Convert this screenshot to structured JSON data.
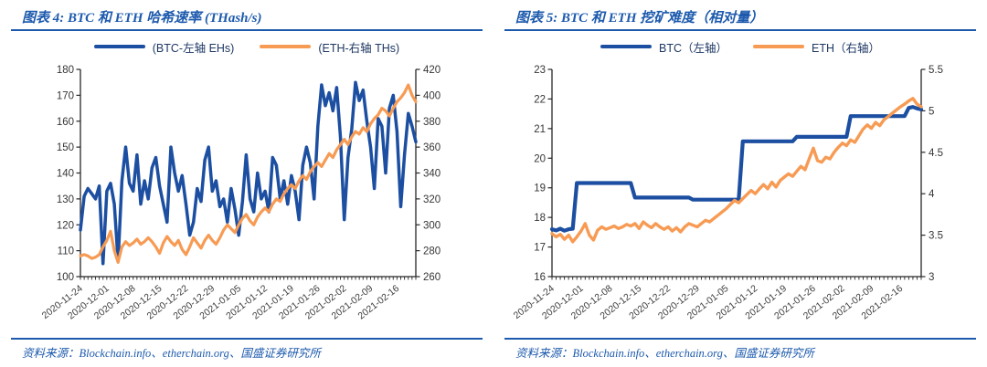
{
  "page": {
    "background": "#ffffff",
    "accent_color": "#1D5AAD"
  },
  "panels": [
    {
      "source": "资料来源：Blockchain.info、etherchain.org、国盛证券研究所"
    },
    {
      "source": "资料来源：Blockchain.info、etherchain.org、国盛证券研究所"
    }
  ],
  "chart_data": [
    {
      "type": "line",
      "title": "图表 4: BTC 和 ETH 哈希速率 (THash/s)",
      "legend_position": "top",
      "grid": false,
      "x_tick_labels": [
        "2020-11-24",
        "2020-12-01",
        "2020-12-08",
        "2020-12-15",
        "2020-12-22",
        "2020-12-29",
        "2021-01-05",
        "2021-01-12",
        "2021-01-19",
        "2021-01-26",
        "2021-02-02",
        "2021-02-09",
        "2021-02-16"
      ],
      "x_frequency": "daily",
      "left_axis": {
        "min": 100,
        "max": 180,
        "ticks": [
          100,
          110,
          120,
          130,
          140,
          150,
          160,
          170,
          180
        ]
      },
      "right_axis": {
        "min": 260,
        "max": 420,
        "ticks": [
          260,
          280,
          300,
          320,
          340,
          360,
          380,
          400,
          420
        ]
      },
      "series": [
        {
          "name": "(BTC-左轴 EHs)",
          "axis": "left",
          "color": "#1C4FA1",
          "values": [
            118,
            131,
            134,
            132,
            130,
            135,
            105,
            133,
            136,
            128,
            106,
            137,
            150,
            136,
            133,
            147,
            128,
            137,
            130,
            142,
            146,
            135,
            128,
            121,
            150,
            140,
            133,
            139,
            128,
            116,
            121,
            134,
            129,
            145,
            150,
            133,
            137,
            127,
            130,
            121,
            134,
            126,
            116,
            129,
            147,
            130,
            125,
            140,
            130,
            133,
            125,
            146,
            143,
            130,
            137,
            128,
            139,
            133,
            122,
            143,
            150,
            144,
            130,
            158,
            174,
            166,
            171,
            164,
            173,
            154,
            122,
            146,
            157,
            175,
            168,
            172,
            160,
            150,
            134,
            161,
            158,
            140,
            165,
            170,
            156,
            127,
            147,
            163,
            158,
            152
          ]
        },
        {
          "name": "(ETH-右轴 THs)",
          "axis": "right",
          "color": "#F79B54",
          "values": [
            276,
            277,
            276,
            274,
            275,
            277,
            283,
            288,
            295,
            280,
            271,
            283,
            287,
            284,
            286,
            289,
            285,
            287,
            290,
            287,
            283,
            278,
            286,
            291,
            287,
            284,
            288,
            281,
            277,
            283,
            290,
            286,
            282,
            288,
            292,
            288,
            285,
            290,
            296,
            300,
            297,
            294,
            300,
            305,
            308,
            303,
            300,
            306,
            310,
            313,
            310,
            316,
            320,
            318,
            324,
            328,
            331,
            328,
            334,
            338,
            335,
            341,
            345,
            348,
            345,
            350,
            355,
            352,
            358,
            362,
            366,
            362,
            368,
            372,
            370,
            375,
            372,
            378,
            382,
            385,
            390,
            388,
            384,
            390,
            395,
            398,
            402,
            408,
            400,
            395
          ]
        }
      ]
    },
    {
      "type": "line",
      "title": "图表 5: BTC 和 ETH 挖矿难度（相对量）",
      "legend_position": "top",
      "grid": false,
      "x_tick_labels": [
        "2020-11-24",
        "2020-12-01",
        "2020-12-08",
        "2020-12-15",
        "2020-12-22",
        "2020-12-29",
        "2021-01-05",
        "2021-01-12",
        "2021-01-19",
        "2021-01-26",
        "2021-02-02",
        "2021-02-09",
        "2021-02-16"
      ],
      "x_frequency": "daily",
      "left_axis": {
        "min": 16,
        "max": 23,
        "ticks": [
          16,
          17,
          18,
          19,
          20,
          21,
          22,
          23
        ]
      },
      "right_axis": {
        "min": 3,
        "max": 5.5,
        "ticks": [
          3,
          3.5,
          4,
          4.5,
          5,
          5.5
        ]
      },
      "series": [
        {
          "name": "BTC（左轴）",
          "axis": "left",
          "color": "#1C4FA1",
          "values": [
            17.6,
            17.56,
            17.62,
            17.55,
            17.6,
            17.62,
            19.16,
            19.16,
            19.16,
            19.16,
            19.16,
            19.16,
            19.16,
            19.16,
            19.16,
            19.16,
            19.16,
            19.16,
            19.16,
            19.16,
            18.67,
            18.67,
            18.67,
            18.67,
            18.67,
            18.67,
            18.67,
            18.67,
            18.67,
            18.67,
            18.67,
            18.67,
            18.67,
            18.67,
            18.6,
            18.6,
            18.6,
            18.6,
            18.6,
            18.6,
            18.6,
            18.6,
            18.6,
            18.6,
            18.6,
            18.6,
            20.57,
            20.57,
            20.57,
            20.57,
            20.57,
            20.57,
            20.57,
            20.57,
            20.57,
            20.57,
            20.57,
            20.57,
            20.57,
            20.72,
            20.72,
            20.72,
            20.72,
            20.72,
            20.72,
            20.72,
            20.72,
            20.72,
            20.72,
            20.72,
            20.72,
            20.72,
            21.42,
            21.42,
            21.42,
            21.42,
            21.42,
            21.42,
            21.42,
            21.42,
            21.42,
            21.42,
            21.42,
            21.42,
            21.42,
            21.42,
            21.7,
            21.73,
            21.68,
            21.65
          ]
        },
        {
          "name": "ETH（右轴）",
          "axis": "right",
          "color": "#F79B54",
          "values": [
            3.52,
            3.48,
            3.51,
            3.45,
            3.5,
            3.42,
            3.48,
            3.55,
            3.64,
            3.5,
            3.44,
            3.56,
            3.6,
            3.57,
            3.59,
            3.61,
            3.58,
            3.6,
            3.63,
            3.61,
            3.64,
            3.58,
            3.66,
            3.62,
            3.59,
            3.64,
            3.6,
            3.57,
            3.6,
            3.55,
            3.59,
            3.54,
            3.6,
            3.64,
            3.62,
            3.6,
            3.64,
            3.68,
            3.66,
            3.7,
            3.74,
            3.78,
            3.82,
            3.87,
            3.92,
            3.89,
            3.94,
            3.99,
            4.04,
            4.0,
            4.06,
            4.11,
            4.06,
            4.14,
            4.08,
            4.16,
            4.2,
            4.24,
            4.21,
            4.27,
            4.33,
            4.29,
            4.42,
            4.55,
            4.4,
            4.38,
            4.44,
            4.42,
            4.5,
            4.56,
            4.61,
            4.58,
            4.65,
            4.62,
            4.7,
            4.78,
            4.83,
            4.79,
            4.86,
            4.82,
            4.89,
            4.93,
            4.97,
            5.01,
            5.05,
            5.08,
            5.12,
            5.15,
            5.08,
            5.05
          ]
        }
      ]
    }
  ]
}
